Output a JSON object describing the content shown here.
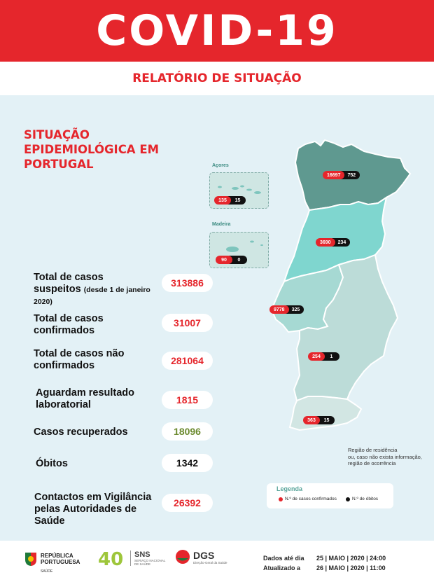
{
  "header": {
    "title": "COVID-19",
    "subtitle": "RELATÓRIO DE SITUAÇÃO"
  },
  "section": {
    "title_line1": "SITUAÇÃO",
    "title_line2": "EPIDEMIOLÓGICA EM",
    "title_line3": "PORTUGAL"
  },
  "stats": [
    {
      "line1": "Total de casos",
      "line2": "suspeitos",
      "note": "(desde 1 de janeiro",
      "note2": "2020)",
      "value": "313886"
    },
    {
      "line1": "Total de casos",
      "line2": "confirmados",
      "value": "31007"
    },
    {
      "line1": "Total de casos não",
      "line2": "confirmados",
      "value": "281064"
    },
    {
      "line1": "Aguardam resultado",
      "line2": "laboratorial",
      "value": "1815"
    },
    {
      "line1": "Casos recuperados",
      "value": "18096"
    },
    {
      "line1": "Óbitos",
      "value": "1342"
    },
    {
      "line1": "Contactos em Vigilância",
      "line2": "pelas Autoridades de",
      "line3": "Saúde",
      "value": "26392"
    }
  ],
  "islands": {
    "acores": {
      "label": "Açores",
      "confirmed": "135",
      "deaths": "15"
    },
    "madeira": {
      "label": "Madeira",
      "confirmed": "90",
      "deaths": "0"
    }
  },
  "regions": [
    {
      "name": "Norte",
      "confirmed": "16697",
      "deaths": "752",
      "color": "#5f9990"
    },
    {
      "name": "Centro",
      "confirmed": "3690",
      "deaths": "234",
      "color": "#7fd6cf"
    },
    {
      "name": "Lisboa e Vale do Tejo",
      "confirmed": "9778",
      "deaths": "325",
      "color": "#a6d9d3"
    },
    {
      "name": "Alentejo",
      "confirmed": "254",
      "deaths": "1",
      "color": "#bcdcd8"
    },
    {
      "name": "Algarve",
      "confirmed": "363",
      "deaths": "15",
      "color": "#d2e6e3"
    }
  ],
  "map_note": {
    "line1": "Região de residência",
    "line2": "ou, caso não exista informação,",
    "line3": "região de ocorrência"
  },
  "legend": {
    "title": "Legenda",
    "confirmed_label": "N.º de casos confirmados",
    "deaths_label": "N.º de óbitos"
  },
  "footer": {
    "logo1_line1": "REPÚBLICA",
    "logo1_line2": "PORTUGUESA",
    "logo1_sub": "SAÚDE",
    "logo2": "40",
    "logo3": "SNS",
    "logo3_sub": "SERVIÇO NACIONAL DE SAÚDE",
    "logo4": "DGS",
    "logo4_sub": "Direção-Geral da Saúde",
    "data_label": "Dados até dia",
    "data_value": "25 | MAIO | 2020 | 24:00",
    "update_label": "Atualizado a",
    "update_value": "26 | MAIO | 2020 | 11:00"
  },
  "colors": {
    "brand_red": "#e5262c",
    "panel_bg": "#e3f1f6",
    "green_value": "#6b8a2e"
  }
}
